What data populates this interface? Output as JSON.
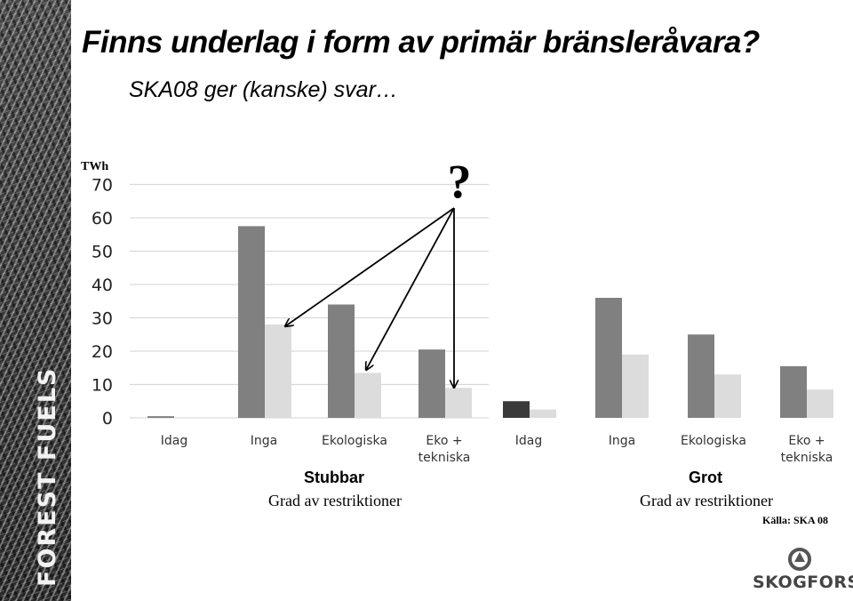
{
  "title": "Finns underlag i form av primär bränsleråvara?",
  "subtitle": "SKA08 ger (kanske) svar…",
  "side_label": "FOREST FUELS",
  "question_mark": "?",
  "source": "Källa: SKA 08",
  "logo_text": "SKOGFORSK",
  "colors": {
    "dark": "#808080",
    "light": "#dcdcdc",
    "idag_dark": "#3a3a3a",
    "grid": "#d9d9d9",
    "arrow": "#000000"
  },
  "chart_data": [
    {
      "type": "bar",
      "title": "Stubbar",
      "xlabel": "Grad av restriktioner",
      "ylabel": "TWh",
      "ylim": [
        0,
        70
      ],
      "yticks": [
        "0",
        "10",
        "20",
        "30",
        "40",
        "50",
        "60",
        "70"
      ],
      "categories": [
        "Idag",
        "Inga",
        "Ekologiska",
        "Eko + tekniska"
      ],
      "series": [
        {
          "values": [
            0.5,
            57.5,
            34,
            20.5
          ]
        },
        {
          "values": [
            0,
            28,
            13.5,
            9
          ]
        }
      ],
      "grid": true
    },
    {
      "type": "bar",
      "title": "Grot",
      "xlabel": "Grad av restriktioner",
      "ylim": [
        0,
        70
      ],
      "categories": [
        "Idag",
        "Inga",
        "Ekologiska",
        "Eko + tekniska"
      ],
      "series": [
        {
          "values": [
            5,
            36,
            25,
            15.5
          ]
        },
        {
          "values": [
            2.5,
            19,
            13,
            8.5
          ]
        }
      ],
      "grid": false
    }
  ]
}
